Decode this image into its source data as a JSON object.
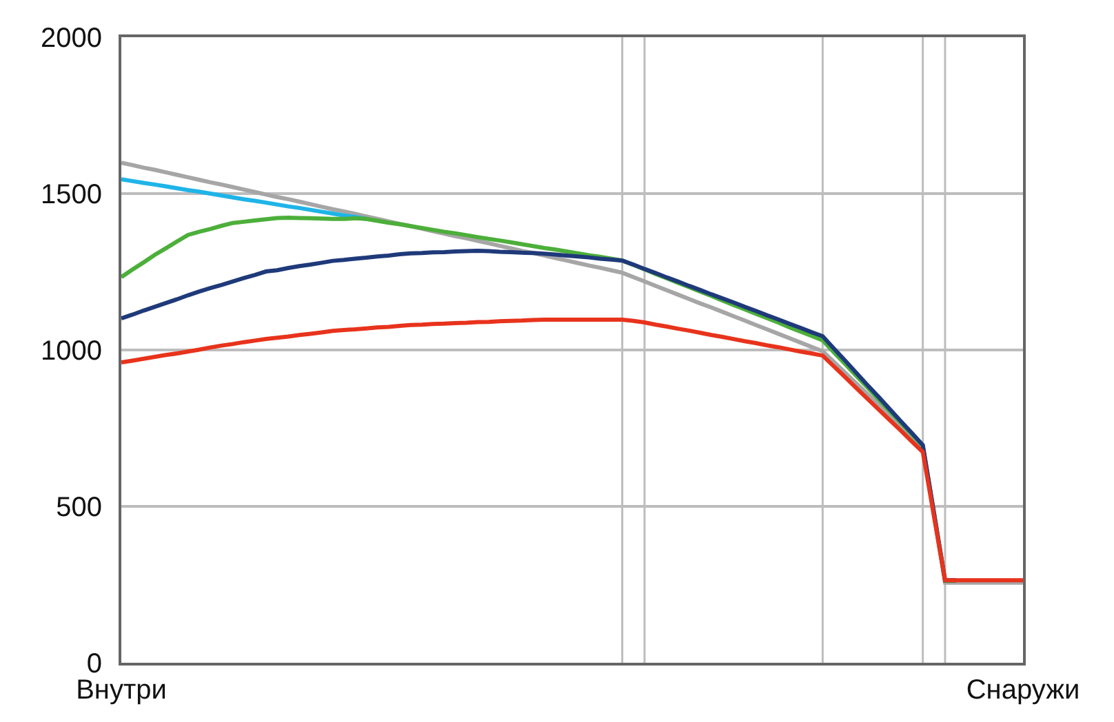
{
  "chart_data": {
    "type": "line",
    "categories": [
      "Внутри",
      null,
      null,
      null,
      null,
      null,
      null,
      null,
      null,
      null,
      null,
      null,
      null,
      null,
      null,
      null,
      null,
      null,
      null,
      null,
      null,
      null,
      null,
      null,
      null,
      null,
      null,
      null,
      null,
      null,
      null,
      null,
      null,
      null,
      null,
      null,
      null,
      null,
      null,
      null,
      null,
      null,
      null,
      null,
      null,
      null,
      null,
      null,
      null,
      null,
      null,
      null,
      null,
      null,
      null,
      null,
      null,
      null,
      null,
      null,
      null,
      null,
      null,
      null,
      null,
      null,
      null,
      null,
      null,
      null,
      null,
      null,
      null,
      null,
      null,
      null,
      null,
      null,
      null,
      null,
      null,
      "Снаружи"
    ],
    "ylim": [
      0,
      2000
    ],
    "yticks": [
      0,
      500,
      1000,
      1500,
      2000
    ],
    "grid": true,
    "legend": false,
    "series": [
      {
        "color": "#a6a6a6",
        "values": [
          1599,
          1591,
          1583,
          1576,
          1568,
          1560,
          1552,
          1544,
          1536,
          1529,
          1521,
          1513,
          1505,
          1497,
          1489,
          1482,
          1474,
          1466,
          1458,
          1450,
          1443,
          1435,
          1427,
          1419,
          1411,
          1403,
          1396,
          1388,
          1380,
          1372,
          1364,
          1357,
          1349,
          1341,
          1333,
          1325,
          1317,
          1310,
          1302,
          1294,
          1286,
          1278,
          1270,
          1263,
          1255,
          1247,
          1233,
          1219,
          1205,
          1191,
          1177,
          1163,
          1149,
          1136,
          1122,
          1108,
          1094,
          1080,
          1066,
          1052,
          1038,
          1024,
          1010,
          996,
          962,
          928,
          894,
          860,
          826,
          792,
          758,
          724,
          690,
          473,
          256,
          256,
          256,
          256,
          256,
          256,
          256,
          256
        ]
      },
      {
        "color": "#1fb4e8",
        "values": [
          1546,
          1540,
          1534,
          1529,
          1523,
          1517,
          1511,
          1506,
          1500,
          1494,
          1488,
          1482,
          1477,
          1471,
          1465,
          1459,
          1454,
          1448,
          1442,
          1436,
          1430,
          1425,
          1419,
          null,
          null,
          null,
          null,
          null,
          null,
          null,
          null,
          null,
          null,
          null,
          null,
          null,
          null,
          null,
          null,
          null,
          null,
          null,
          null,
          null,
          null,
          null,
          null,
          null,
          null,
          null,
          null,
          null,
          null,
          null,
          null,
          null,
          null,
          null,
          null,
          null,
          null,
          null,
          null,
          null,
          null,
          null,
          null,
          null,
          null,
          null,
          null,
          null,
          null,
          null,
          null,
          null,
          null,
          null,
          null,
          null,
          null,
          null
        ]
      },
      {
        "color": "#4caf3a",
        "values": [
          1233,
          1257,
          1280,
          1304,
          1325,
          1347,
          1368,
          1378,
          1387,
          1397,
          1406,
          1410,
          1414,
          1418,
          1422,
          1423,
          1422,
          1421,
          1420,
          1419,
          1419,
          1421,
          1419,
          1413,
          1407,
          1402,
          1396,
          1390,
          1384,
          1378,
          1373,
          1367,
          1361,
          1355,
          1350,
          1344,
          1338,
          1332,
          1326,
          1321,
          1315,
          1309,
          1303,
          1298,
          1292,
          1286,
          1272,
          1258,
          1243,
          1229,
          1215,
          1201,
          1187,
          1173,
          1158,
          1144,
          1130,
          1116,
          1102,
          1088,
          1073,
          1059,
          1045,
          1031,
          993,
          956,
          918,
          881,
          843,
          806,
          768,
          731,
          693,
          478,
          262,
          262,
          null,
          null,
          null,
          null,
          null,
          null
        ]
      },
      {
        "color": "#1f3a7a",
        "values": [
          1101,
          1113,
          1126,
          1138,
          1150,
          1162,
          1175,
          1187,
          1198,
          1208,
          1219,
          1230,
          1240,
          1251,
          1255,
          1262,
          1268,
          1273,
          1279,
          1285,
          1288,
          1292,
          1295,
          1299,
          1302,
          1306,
          1309,
          1310,
          1312,
          1313,
          1315,
          1316,
          1317,
          1316,
          1314,
          1313,
          1311,
          1310,
          1308,
          1305,
          1302,
          1299,
          1296,
          1292,
          1289,
          1286,
          1273,
          1259,
          1246,
          1232,
          1219,
          1205,
          1192,
          1178,
          1165,
          1152,
          1138,
          1125,
          1111,
          1098,
          1084,
          1071,
          1057,
          1044,
          1005,
          967,
          928,
          889,
          851,
          812,
          773,
          735,
          696,
          480,
          264,
          264,
          null,
          null,
          null,
          null,
          null,
          null
        ]
      },
      {
        "color": "#e8331c",
        "values": [
          960,
          966,
          972,
          978,
          984,
          989,
          995,
          1001,
          1008,
          1014,
          1019,
          1025,
          1030,
          1035,
          1039,
          1043,
          1048,
          1052,
          1056,
          1061,
          1064,
          1066,
          1069,
          1072,
          1074,
          1077,
          1080,
          1081,
          1083,
          1084,
          1086,
          1087,
          1089,
          1090,
          1092,
          1093,
          1094,
          1096,
          1097,
          1097,
          1097,
          1097,
          1097,
          1097,
          1097,
          1097,
          1093,
          1088,
          1081,
          1075,
          1068,
          1062,
          1055,
          1048,
          1042,
          1035,
          1028,
          1022,
          1015,
          1009,
          1002,
          995,
          989,
          982,
          948,
          914,
          879,
          845,
          811,
          777,
          743,
          708,
          674,
          469,
          264,
          264,
          264,
          264,
          264,
          264,
          264,
          264
        ]
      }
    ]
  }
}
